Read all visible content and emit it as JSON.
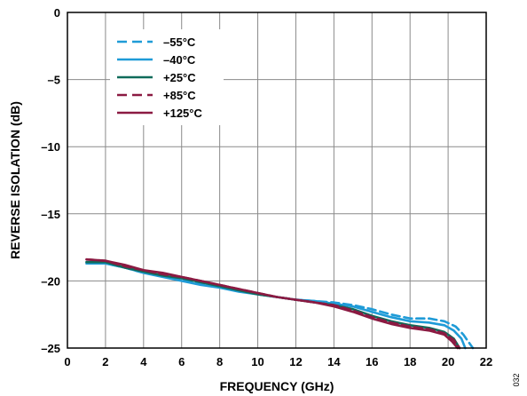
{
  "chart_data": {
    "type": "line",
    "xlabel": "FREQUENCY (GHz)",
    "ylabel": "REVERSE ISOLATION (dB)",
    "xlim": [
      0,
      22
    ],
    "ylim": [
      -25,
      0
    ],
    "x_ticks": [
      0,
      2,
      4,
      6,
      8,
      10,
      12,
      14,
      16,
      18,
      20,
      22
    ],
    "y_ticks": [
      0,
      -5,
      -10,
      -15,
      -20,
      -25
    ],
    "x_tick_labels": [
      "0",
      "2",
      "4",
      "6",
      "8",
      "10",
      "12",
      "14",
      "16",
      "18",
      "20",
      "22"
    ],
    "y_tick_labels": [
      "0",
      "–5",
      "–10",
      "–15",
      "–20",
      "–25"
    ],
    "grid": true,
    "legend_position": "top-left",
    "figure_id": "032",
    "series": [
      {
        "name": "–55°C",
        "color": "#1f9bd7",
        "dash": true,
        "points": [
          [
            1,
            -18.6
          ],
          [
            2,
            -18.7
          ],
          [
            3,
            -19.0
          ],
          [
            4,
            -19.4
          ],
          [
            5,
            -19.6
          ],
          [
            6,
            -19.9
          ],
          [
            7,
            -20.2
          ],
          [
            8,
            -20.5
          ],
          [
            9,
            -20.7
          ],
          [
            10,
            -21.0
          ],
          [
            11,
            -21.2
          ],
          [
            12,
            -21.4
          ],
          [
            13,
            -21.5
          ],
          [
            14,
            -21.6
          ],
          [
            15,
            -21.8
          ],
          [
            16,
            -22.1
          ],
          [
            17,
            -22.5
          ],
          [
            18,
            -22.8
          ],
          [
            19,
            -22.8
          ],
          [
            19.8,
            -23.0
          ],
          [
            20.4,
            -23.4
          ],
          [
            20.8,
            -24.0
          ],
          [
            21.1,
            -24.6
          ],
          [
            21.3,
            -25.0
          ]
        ]
      },
      {
        "name": "–40°C",
        "color": "#1f9bd7",
        "dash": false,
        "points": [
          [
            1,
            -18.7
          ],
          [
            2,
            -18.7
          ],
          [
            3,
            -19.0
          ],
          [
            4,
            -19.4
          ],
          [
            5,
            -19.7
          ],
          [
            6,
            -20.0
          ],
          [
            7,
            -20.3
          ],
          [
            8,
            -20.5
          ],
          [
            9,
            -20.8
          ],
          [
            10,
            -21.0
          ],
          [
            11,
            -21.2
          ],
          [
            12,
            -21.4
          ],
          [
            13,
            -21.5
          ],
          [
            14,
            -21.7
          ],
          [
            15,
            -21.9
          ],
          [
            16,
            -22.3
          ],
          [
            17,
            -22.7
          ],
          [
            18,
            -23.0
          ],
          [
            19,
            -23.1
          ],
          [
            19.8,
            -23.3
          ],
          [
            20.3,
            -23.7
          ],
          [
            20.7,
            -24.3
          ],
          [
            20.9,
            -25.0
          ]
        ]
      },
      {
        "name": "+25°C",
        "color": "#0f6b5a",
        "dash": false,
        "points": [
          [
            1,
            -18.6
          ],
          [
            2,
            -18.6
          ],
          [
            3,
            -19.0
          ],
          [
            4,
            -19.3
          ],
          [
            5,
            -19.6
          ],
          [
            6,
            -19.8
          ],
          [
            7,
            -20.1
          ],
          [
            8,
            -20.4
          ],
          [
            9,
            -20.7
          ],
          [
            10,
            -21.0
          ],
          [
            11,
            -21.2
          ],
          [
            12,
            -21.4
          ],
          [
            13,
            -21.6
          ],
          [
            14,
            -21.8
          ],
          [
            15,
            -22.1
          ],
          [
            16,
            -22.6
          ],
          [
            17,
            -23.0
          ],
          [
            18,
            -23.3
          ],
          [
            19,
            -23.5
          ],
          [
            19.8,
            -23.8
          ],
          [
            20.3,
            -24.3
          ],
          [
            20.6,
            -25.0
          ]
        ]
      },
      {
        "name": "+85°C",
        "color": "#8b1a42",
        "dash": true,
        "points": [
          [
            1,
            -18.4
          ],
          [
            2,
            -18.5
          ],
          [
            3,
            -18.9
          ],
          [
            4,
            -19.2
          ],
          [
            5,
            -19.5
          ],
          [
            6,
            -19.7
          ],
          [
            7,
            -20.0
          ],
          [
            8,
            -20.3
          ],
          [
            9,
            -20.6
          ],
          [
            10,
            -20.9
          ],
          [
            11,
            -21.2
          ],
          [
            12,
            -21.4
          ],
          [
            13,
            -21.6
          ],
          [
            14,
            -21.8
          ],
          [
            15,
            -22.2
          ],
          [
            16,
            -22.7
          ],
          [
            17,
            -23.1
          ],
          [
            18,
            -23.4
          ],
          [
            19,
            -23.6
          ],
          [
            19.8,
            -23.9
          ],
          [
            20.3,
            -24.4
          ],
          [
            20.6,
            -25.0
          ]
        ]
      },
      {
        "name": "+125°C",
        "color": "#8b1a42",
        "dash": false,
        "points": [
          [
            1,
            -18.4
          ],
          [
            2,
            -18.5
          ],
          [
            3,
            -18.8
          ],
          [
            4,
            -19.2
          ],
          [
            5,
            -19.4
          ],
          [
            6,
            -19.7
          ],
          [
            7,
            -20.0
          ],
          [
            8,
            -20.3
          ],
          [
            9,
            -20.6
          ],
          [
            10,
            -20.9
          ],
          [
            11,
            -21.2
          ],
          [
            12,
            -21.4
          ],
          [
            13,
            -21.6
          ],
          [
            14,
            -21.9
          ],
          [
            15,
            -22.3
          ],
          [
            16,
            -22.8
          ],
          [
            17,
            -23.2
          ],
          [
            18,
            -23.5
          ],
          [
            19,
            -23.7
          ],
          [
            19.8,
            -24.0
          ],
          [
            20.2,
            -24.5
          ],
          [
            20.5,
            -25.0
          ]
        ]
      }
    ]
  }
}
